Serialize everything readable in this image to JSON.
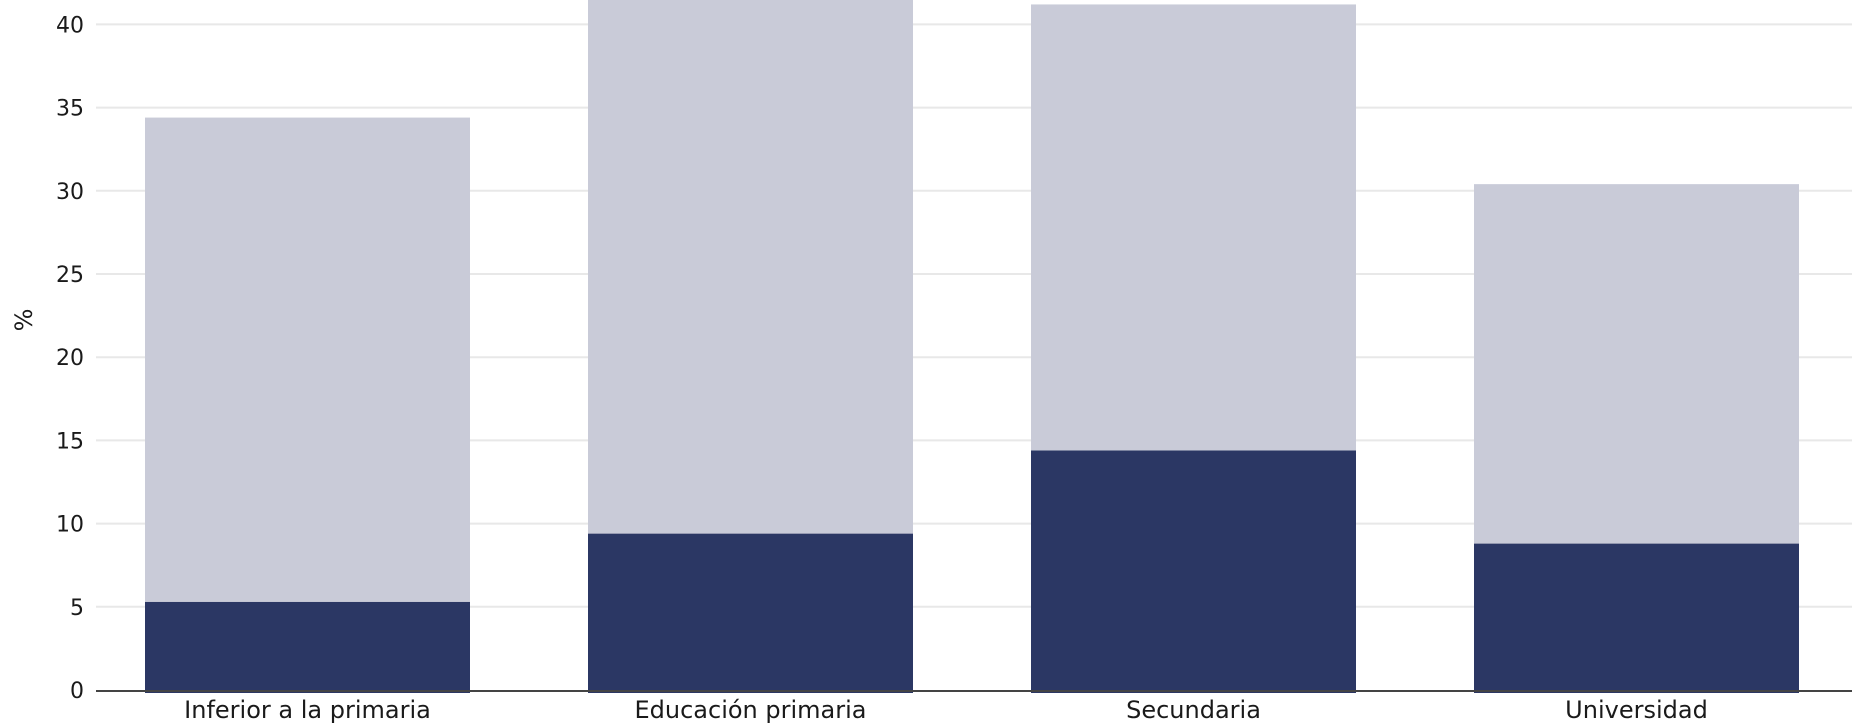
{
  "chart_data": {
    "type": "bar",
    "stacked": true,
    "categories": [
      "Inferior a la primaria",
      "Educación primaria",
      "Secundaria",
      "Universidad"
    ],
    "series": [
      {
        "values": [
          5.3,
          9.4,
          14.4,
          8.8
        ],
        "color": "#2b3764"
      },
      {
        "values": [
          29.1,
          32.4,
          26.8,
          21.6
        ],
        "color": "#c9cbd8"
      }
    ],
    "ylabel": "%",
    "yticks": [
      0,
      5,
      10,
      15,
      20,
      25,
      30,
      35,
      40
    ],
    "ylim": [
      0,
      40.5
    ],
    "grid": true,
    "colors": {
      "grid": "#e8e8e8",
      "axis": "#444444",
      "text": "#1a1a1a"
    }
  }
}
